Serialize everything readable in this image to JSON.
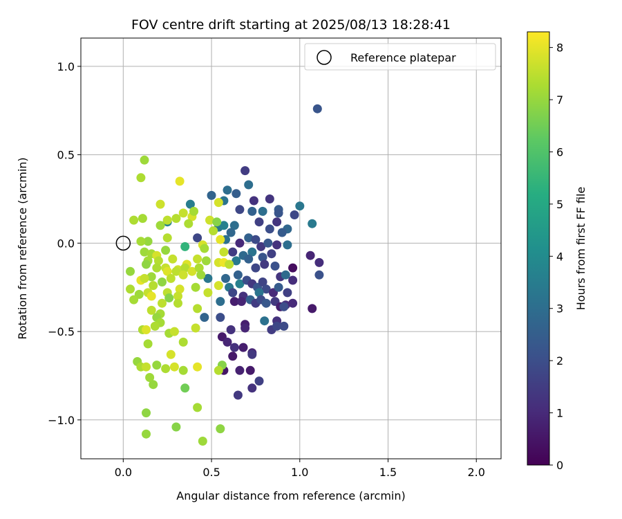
{
  "chart_data": {
    "type": "scatter",
    "title": "FOV centre drift starting at 2025/08/13 18:28:41",
    "xlabel": "Angular distance from reference (arcmin)",
    "ylabel": "Rotation from reference (arcmin)",
    "xlim": [
      -0.24,
      2.14
    ],
    "ylim": [
      -1.22,
      1.16
    ],
    "xticks": [
      0.0,
      0.5,
      1.0,
      1.5,
      2.0
    ],
    "xtick_labels": [
      "0.0",
      "0.5",
      "1.0",
      "1.5",
      "2.0"
    ],
    "yticks": [
      -1.0,
      -0.5,
      0.0,
      0.5,
      1.0
    ],
    "ytick_labels": [
      "−1.0",
      "−0.5",
      "0.0",
      "0.5",
      "1.0"
    ],
    "grid": true,
    "legend": {
      "label": "Reference platepar",
      "placement": "top-right"
    },
    "reference": {
      "x": 0.0,
      "y": 0.0
    },
    "colorbar": {
      "label": "Hours from first FF file",
      "colormap": "viridis",
      "range": [
        0,
        8.3
      ],
      "ticks": [
        0,
        1,
        2,
        3,
        4,
        5,
        6,
        7,
        8
      ],
      "tick_labels": [
        "0",
        "1",
        "2",
        "3",
        "4",
        "5",
        "6",
        "7",
        "8"
      ]
    },
    "points": [
      {
        "x": 1.1,
        "y": 0.76,
        "h": 2.2
      },
      {
        "x": 0.69,
        "y": 0.41,
        "h": 1.5
      },
      {
        "x": 0.59,
        "y": 0.3,
        "h": 3.0
      },
      {
        "x": 0.64,
        "y": 0.28,
        "h": 2.5
      },
      {
        "x": 0.71,
        "y": 0.33,
        "h": 3.0
      },
      {
        "x": 0.83,
        "y": 0.25,
        "h": 1.3
      },
      {
        "x": 0.5,
        "y": 0.27,
        "h": 2.7
      },
      {
        "x": 0.57,
        "y": 0.24,
        "h": 3.2
      },
      {
        "x": 0.66,
        "y": 0.19,
        "h": 1.8
      },
      {
        "x": 0.74,
        "y": 0.24,
        "h": 1.2
      },
      {
        "x": 0.79,
        "y": 0.18,
        "h": 3.0
      },
      {
        "x": 0.88,
        "y": 0.19,
        "h": 2.4
      },
      {
        "x": 1.0,
        "y": 0.21,
        "h": 3.3
      },
      {
        "x": 0.73,
        "y": 0.18,
        "h": 2.6
      },
      {
        "x": 0.88,
        "y": 0.17,
        "h": 2.2
      },
      {
        "x": 0.97,
        "y": 0.16,
        "h": 1.8
      },
      {
        "x": 1.07,
        "y": 0.11,
        "h": 3.4
      },
      {
        "x": 0.77,
        "y": 0.12,
        "h": 1.6
      },
      {
        "x": 0.83,
        "y": 0.08,
        "h": 2.0
      },
      {
        "x": 0.87,
        "y": 0.12,
        "h": 1.3
      },
      {
        "x": 0.93,
        "y": 0.08,
        "h": 2.8
      },
      {
        "x": 0.9,
        "y": 0.06,
        "h": 2.4
      },
      {
        "x": 0.63,
        "y": 0.1,
        "h": 3.0
      },
      {
        "x": 0.54,
        "y": 0.09,
        "h": 3.3
      },
      {
        "x": 0.57,
        "y": 0.1,
        "h": 3.6
      },
      {
        "x": 0.61,
        "y": 0.06,
        "h": 2.8
      },
      {
        "x": 0.58,
        "y": 0.02,
        "h": 3.1
      },
      {
        "x": 0.66,
        "y": 0.0,
        "h": 1.0
      },
      {
        "x": 0.71,
        "y": 0.03,
        "h": 2.6
      },
      {
        "x": 0.75,
        "y": 0.02,
        "h": 1.9
      },
      {
        "x": 0.78,
        "y": -0.02,
        "h": 1.4
      },
      {
        "x": 0.82,
        "y": 0.0,
        "h": 2.3
      },
      {
        "x": 0.87,
        "y": -0.01,
        "h": 1.2
      },
      {
        "x": 0.93,
        "y": -0.01,
        "h": 3.0
      },
      {
        "x": 0.68,
        "y": -0.07,
        "h": 2.9
      },
      {
        "x": 0.73,
        "y": -0.05,
        "h": 3.2
      },
      {
        "x": 0.79,
        "y": -0.08,
        "h": 2.2
      },
      {
        "x": 0.84,
        "y": -0.06,
        "h": 1.6
      },
      {
        "x": 0.62,
        "y": -0.05,
        "h": 1.5
      },
      {
        "x": 0.64,
        "y": -0.1,
        "h": 3.4
      },
      {
        "x": 0.71,
        "y": -0.09,
        "h": 2.6
      },
      {
        "x": 0.75,
        "y": -0.14,
        "h": 1.8
      },
      {
        "x": 0.8,
        "y": -0.12,
        "h": 1.4
      },
      {
        "x": 0.86,
        "y": -0.13,
        "h": 2.1
      },
      {
        "x": 0.96,
        "y": -0.14,
        "h": 0.3
      },
      {
        "x": 1.06,
        "y": -0.07,
        "h": 0.9
      },
      {
        "x": 1.11,
        "y": -0.11,
        "h": 1.1
      },
      {
        "x": 1.11,
        "y": -0.18,
        "h": 2.1
      },
      {
        "x": 0.89,
        "y": -0.19,
        "h": 1.3
      },
      {
        "x": 0.92,
        "y": -0.18,
        "h": 2.9
      },
      {
        "x": 0.96,
        "y": -0.21,
        "h": 1.1
      },
      {
        "x": 0.58,
        "y": -0.2,
        "h": 2.8
      },
      {
        "x": 0.6,
        "y": -0.25,
        "h": 3.3
      },
      {
        "x": 0.65,
        "y": -0.18,
        "h": 2.6
      },
      {
        "x": 0.66,
        "y": -0.23,
        "h": 3.6
      },
      {
        "x": 0.7,
        "y": -0.21,
        "h": 2.0
      },
      {
        "x": 0.73,
        "y": -0.23,
        "h": 1.4
      },
      {
        "x": 0.76,
        "y": -0.25,
        "h": 2.2
      },
      {
        "x": 0.79,
        "y": -0.22,
        "h": 1.7
      },
      {
        "x": 0.81,
        "y": -0.26,
        "h": 1.9
      },
      {
        "x": 0.85,
        "y": -0.28,
        "h": 1.0
      },
      {
        "x": 0.88,
        "y": -0.25,
        "h": 2.4
      },
      {
        "x": 0.62,
        "y": -0.28,
        "h": 1.8
      },
      {
        "x": 0.68,
        "y": -0.3,
        "h": 1.2
      },
      {
        "x": 0.72,
        "y": -0.32,
        "h": 2.6
      },
      {
        "x": 0.77,
        "y": -0.28,
        "h": 3.2
      },
      {
        "x": 0.63,
        "y": -0.33,
        "h": 0.7
      },
      {
        "x": 0.67,
        "y": -0.33,
        "h": 0.9
      },
      {
        "x": 0.75,
        "y": -0.34,
        "h": 1.5
      },
      {
        "x": 0.78,
        "y": -0.32,
        "h": 1.9
      },
      {
        "x": 0.81,
        "y": -0.34,
        "h": 2.3
      },
      {
        "x": 0.86,
        "y": -0.33,
        "h": 1.4
      },
      {
        "x": 0.89,
        "y": -0.36,
        "h": 0.7
      },
      {
        "x": 0.92,
        "y": -0.35,
        "h": 1.2
      },
      {
        "x": 0.93,
        "y": -0.28,
        "h": 1.6
      },
      {
        "x": 0.96,
        "y": -0.34,
        "h": 1.0
      },
      {
        "x": 0.91,
        "y": -0.36,
        "h": 2.0
      },
      {
        "x": 1.07,
        "y": -0.37,
        "h": 0.6
      },
      {
        "x": 0.87,
        "y": -0.44,
        "h": 1.2
      },
      {
        "x": 0.84,
        "y": -0.49,
        "h": 1.5
      },
      {
        "x": 0.87,
        "y": -0.47,
        "h": 1.8
      },
      {
        "x": 0.91,
        "y": -0.47,
        "h": 1.9
      },
      {
        "x": 0.8,
        "y": -0.44,
        "h": 3.1
      },
      {
        "x": 0.69,
        "y": -0.46,
        "h": 0.7
      },
      {
        "x": 0.69,
        "y": -0.48,
        "h": 0.9
      },
      {
        "x": 0.61,
        "y": -0.49,
        "h": 1.2
      },
      {
        "x": 0.56,
        "y": -0.53,
        "h": 0.6
      },
      {
        "x": 0.59,
        "y": -0.56,
        "h": 0.9
      },
      {
        "x": 0.63,
        "y": -0.59,
        "h": 1.2
      },
      {
        "x": 0.68,
        "y": -0.59,
        "h": 0.7
      },
      {
        "x": 0.73,
        "y": -0.62,
        "h": 0.9
      },
      {
        "x": 0.73,
        "y": -0.63,
        "h": 1.4
      },
      {
        "x": 0.62,
        "y": -0.64,
        "h": 0.6
      },
      {
        "x": 0.57,
        "y": -0.72,
        "h": 0.5
      },
      {
        "x": 0.66,
        "y": -0.72,
        "h": 0.8
      },
      {
        "x": 0.72,
        "y": -0.72,
        "h": 0.6
      },
      {
        "x": 0.77,
        "y": -0.78,
        "h": 1.6
      },
      {
        "x": 0.73,
        "y": -0.82,
        "h": 1.2
      },
      {
        "x": 0.65,
        "y": -0.86,
        "h": 1.4
      },
      {
        "x": 0.55,
        "y": -0.42,
        "h": 2.0
      },
      {
        "x": 0.46,
        "y": -0.42,
        "h": 2.7
      },
      {
        "x": 0.55,
        "y": -0.33,
        "h": 3.0
      },
      {
        "x": 0.48,
        "y": -0.2,
        "h": 3.3
      },
      {
        "x": 0.42,
        "y": 0.03,
        "h": 1.8
      },
      {
        "x": 0.38,
        "y": 0.22,
        "h": 3.5
      },
      {
        "x": 0.25,
        "y": 0.12,
        "h": 3.7
      },
      {
        "x": 0.35,
        "y": -0.02,
        "h": 5.4
      },
      {
        "x": 0.12,
        "y": 0.47,
        "h": 7.1
      },
      {
        "x": 0.1,
        "y": 0.37,
        "h": 7.3
      },
      {
        "x": 0.32,
        "y": 0.35,
        "h": 8.0
      },
      {
        "x": 0.21,
        "y": 0.22,
        "h": 7.7
      },
      {
        "x": 0.34,
        "y": 0.17,
        "h": 7.6
      },
      {
        "x": 0.39,
        "y": 0.15,
        "h": 7.8
      },
      {
        "x": 0.4,
        "y": 0.18,
        "h": 7.2
      },
      {
        "x": 0.3,
        "y": 0.14,
        "h": 7.4
      },
      {
        "x": 0.21,
        "y": 0.1,
        "h": 7.1
      },
      {
        "x": 0.25,
        "y": 0.13,
        "h": 7.5
      },
      {
        "x": 0.37,
        "y": 0.11,
        "h": 7.3
      },
      {
        "x": 0.49,
        "y": 0.13,
        "h": 7.7
      },
      {
        "x": 0.54,
        "y": 0.23,
        "h": 7.8
      },
      {
        "x": 0.06,
        "y": 0.13,
        "h": 7.3
      },
      {
        "x": 0.11,
        "y": 0.14,
        "h": 7.2
      },
      {
        "x": 0.51,
        "y": 0.07,
        "h": 7.4
      },
      {
        "x": 0.53,
        "y": 0.12,
        "h": 6.8
      },
      {
        "x": 0.25,
        "y": 0.03,
        "h": 7.4
      },
      {
        "x": 0.14,
        "y": 0.01,
        "h": 7.0
      },
      {
        "x": 0.1,
        "y": 0.01,
        "h": 7.2
      },
      {
        "x": 0.45,
        "y": -0.01,
        "h": 7.8
      },
      {
        "x": 0.46,
        "y": -0.03,
        "h": 7.2
      },
      {
        "x": 0.55,
        "y": 0.02,
        "h": 8.0
      },
      {
        "x": 0.57,
        "y": -0.05,
        "h": 7.6
      },
      {
        "x": 0.12,
        "y": -0.05,
        "h": 7.1
      },
      {
        "x": 0.16,
        "y": -0.06,
        "h": 7.2
      },
      {
        "x": 0.19,
        "y": -0.07,
        "h": 7.8
      },
      {
        "x": 0.24,
        "y": -0.04,
        "h": 7.0
      },
      {
        "x": 0.28,
        "y": -0.09,
        "h": 7.6
      },
      {
        "x": 0.14,
        "y": -0.1,
        "h": 7.2
      },
      {
        "x": 0.13,
        "y": -0.12,
        "h": 6.9
      },
      {
        "x": 0.2,
        "y": -0.1,
        "h": 7.4
      },
      {
        "x": 0.24,
        "y": -0.14,
        "h": 7.6
      },
      {
        "x": 0.31,
        "y": -0.15,
        "h": 7.7
      },
      {
        "x": 0.36,
        "y": -0.12,
        "h": 7.9
      },
      {
        "x": 0.42,
        "y": -0.09,
        "h": 7.6
      },
      {
        "x": 0.47,
        "y": -0.1,
        "h": 7.1
      },
      {
        "x": 0.54,
        "y": -0.11,
        "h": 7.8
      },
      {
        "x": 0.57,
        "y": -0.11,
        "h": 8.1
      },
      {
        "x": 0.6,
        "y": -0.12,
        "h": 7.5
      },
      {
        "x": 0.54,
        "y": -0.24,
        "h": 7.8
      },
      {
        "x": 0.19,
        "y": -0.14,
        "h": 7.3
      },
      {
        "x": 0.25,
        "y": -0.16,
        "h": 7.9
      },
      {
        "x": 0.3,
        "y": -0.16,
        "h": 7.5
      },
      {
        "x": 0.35,
        "y": -0.14,
        "h": 7.4
      },
      {
        "x": 0.39,
        "y": -0.16,
        "h": 7.8
      },
      {
        "x": 0.43,
        "y": -0.14,
        "h": 7.3
      },
      {
        "x": 0.04,
        "y": -0.16,
        "h": 7.0
      },
      {
        "x": 0.1,
        "y": -0.21,
        "h": 8.0
      },
      {
        "x": 0.16,
        "y": -0.19,
        "h": 7.1
      },
      {
        "x": 0.22,
        "y": -0.22,
        "h": 6.9
      },
      {
        "x": 0.27,
        "y": -0.2,
        "h": 7.5
      },
      {
        "x": 0.34,
        "y": -0.18,
        "h": 7.7
      },
      {
        "x": 0.44,
        "y": -0.18,
        "h": 7.1
      },
      {
        "x": 0.12,
        "y": -0.2,
        "h": 7.6
      },
      {
        "x": 0.17,
        "y": -0.24,
        "h": 7.4
      },
      {
        "x": 0.04,
        "y": -0.26,
        "h": 7.3
      },
      {
        "x": 0.09,
        "y": -0.29,
        "h": 7.1
      },
      {
        "x": 0.14,
        "y": -0.28,
        "h": 7.6
      },
      {
        "x": 0.16,
        "y": -0.3,
        "h": 8.0
      },
      {
        "x": 0.25,
        "y": -0.28,
        "h": 7.5
      },
      {
        "x": 0.32,
        "y": -0.26,
        "h": 7.8
      },
      {
        "x": 0.41,
        "y": -0.25,
        "h": 7.2
      },
      {
        "x": 0.48,
        "y": -0.28,
        "h": 7.6
      },
      {
        "x": 0.06,
        "y": -0.32,
        "h": 7.2
      },
      {
        "x": 0.22,
        "y": -0.34,
        "h": 7.5
      },
      {
        "x": 0.26,
        "y": -0.31,
        "h": 6.8
      },
      {
        "x": 0.31,
        "y": -0.3,
        "h": 7.6
      },
      {
        "x": 0.31,
        "y": -0.34,
        "h": 7.4
      },
      {
        "x": 0.16,
        "y": -0.38,
        "h": 7.5
      },
      {
        "x": 0.21,
        "y": -0.4,
        "h": 7.2
      },
      {
        "x": 0.42,
        "y": -0.37,
        "h": 7.4
      },
      {
        "x": 0.19,
        "y": -0.42,
        "h": 7.0
      },
      {
        "x": 0.21,
        "y": -0.45,
        "h": 7.2
      },
      {
        "x": 0.18,
        "y": -0.47,
        "h": 7.3
      },
      {
        "x": 0.41,
        "y": -0.48,
        "h": 7.6
      },
      {
        "x": 0.11,
        "y": -0.49,
        "h": 7.3
      },
      {
        "x": 0.13,
        "y": -0.49,
        "h": 7.9
      },
      {
        "x": 0.26,
        "y": -0.51,
        "h": 7.2
      },
      {
        "x": 0.29,
        "y": -0.5,
        "h": 7.6
      },
      {
        "x": 0.34,
        "y": -0.56,
        "h": 7.3
      },
      {
        "x": 0.14,
        "y": -0.57,
        "h": 7.2
      },
      {
        "x": 0.27,
        "y": -0.63,
        "h": 7.8
      },
      {
        "x": 0.08,
        "y": -0.67,
        "h": 7.0
      },
      {
        "x": 0.19,
        "y": -0.69,
        "h": 7.0
      },
      {
        "x": 0.1,
        "y": -0.7,
        "h": 7.3
      },
      {
        "x": 0.13,
        "y": -0.7,
        "h": 7.6
      },
      {
        "x": 0.24,
        "y": -0.71,
        "h": 7.3
      },
      {
        "x": 0.29,
        "y": -0.7,
        "h": 7.8
      },
      {
        "x": 0.34,
        "y": -0.72,
        "h": 7.2
      },
      {
        "x": 0.42,
        "y": -0.7,
        "h": 8.0
      },
      {
        "x": 0.56,
        "y": -0.69,
        "h": 6.8
      },
      {
        "x": 0.54,
        "y": -0.72,
        "h": 7.4
      },
      {
        "x": 0.15,
        "y": -0.76,
        "h": 7.1
      },
      {
        "x": 0.17,
        "y": -0.8,
        "h": 7.0
      },
      {
        "x": 0.35,
        "y": -0.82,
        "h": 6.5
      },
      {
        "x": 0.42,
        "y": -0.93,
        "h": 7.2
      },
      {
        "x": 0.13,
        "y": -0.96,
        "h": 6.9
      },
      {
        "x": 0.3,
        "y": -1.04,
        "h": 6.8
      },
      {
        "x": 0.55,
        "y": -1.05,
        "h": 6.9
      },
      {
        "x": 0.13,
        "y": -1.08,
        "h": 7.0
      },
      {
        "x": 0.45,
        "y": -1.12,
        "h": 7.1
      }
    ]
  }
}
